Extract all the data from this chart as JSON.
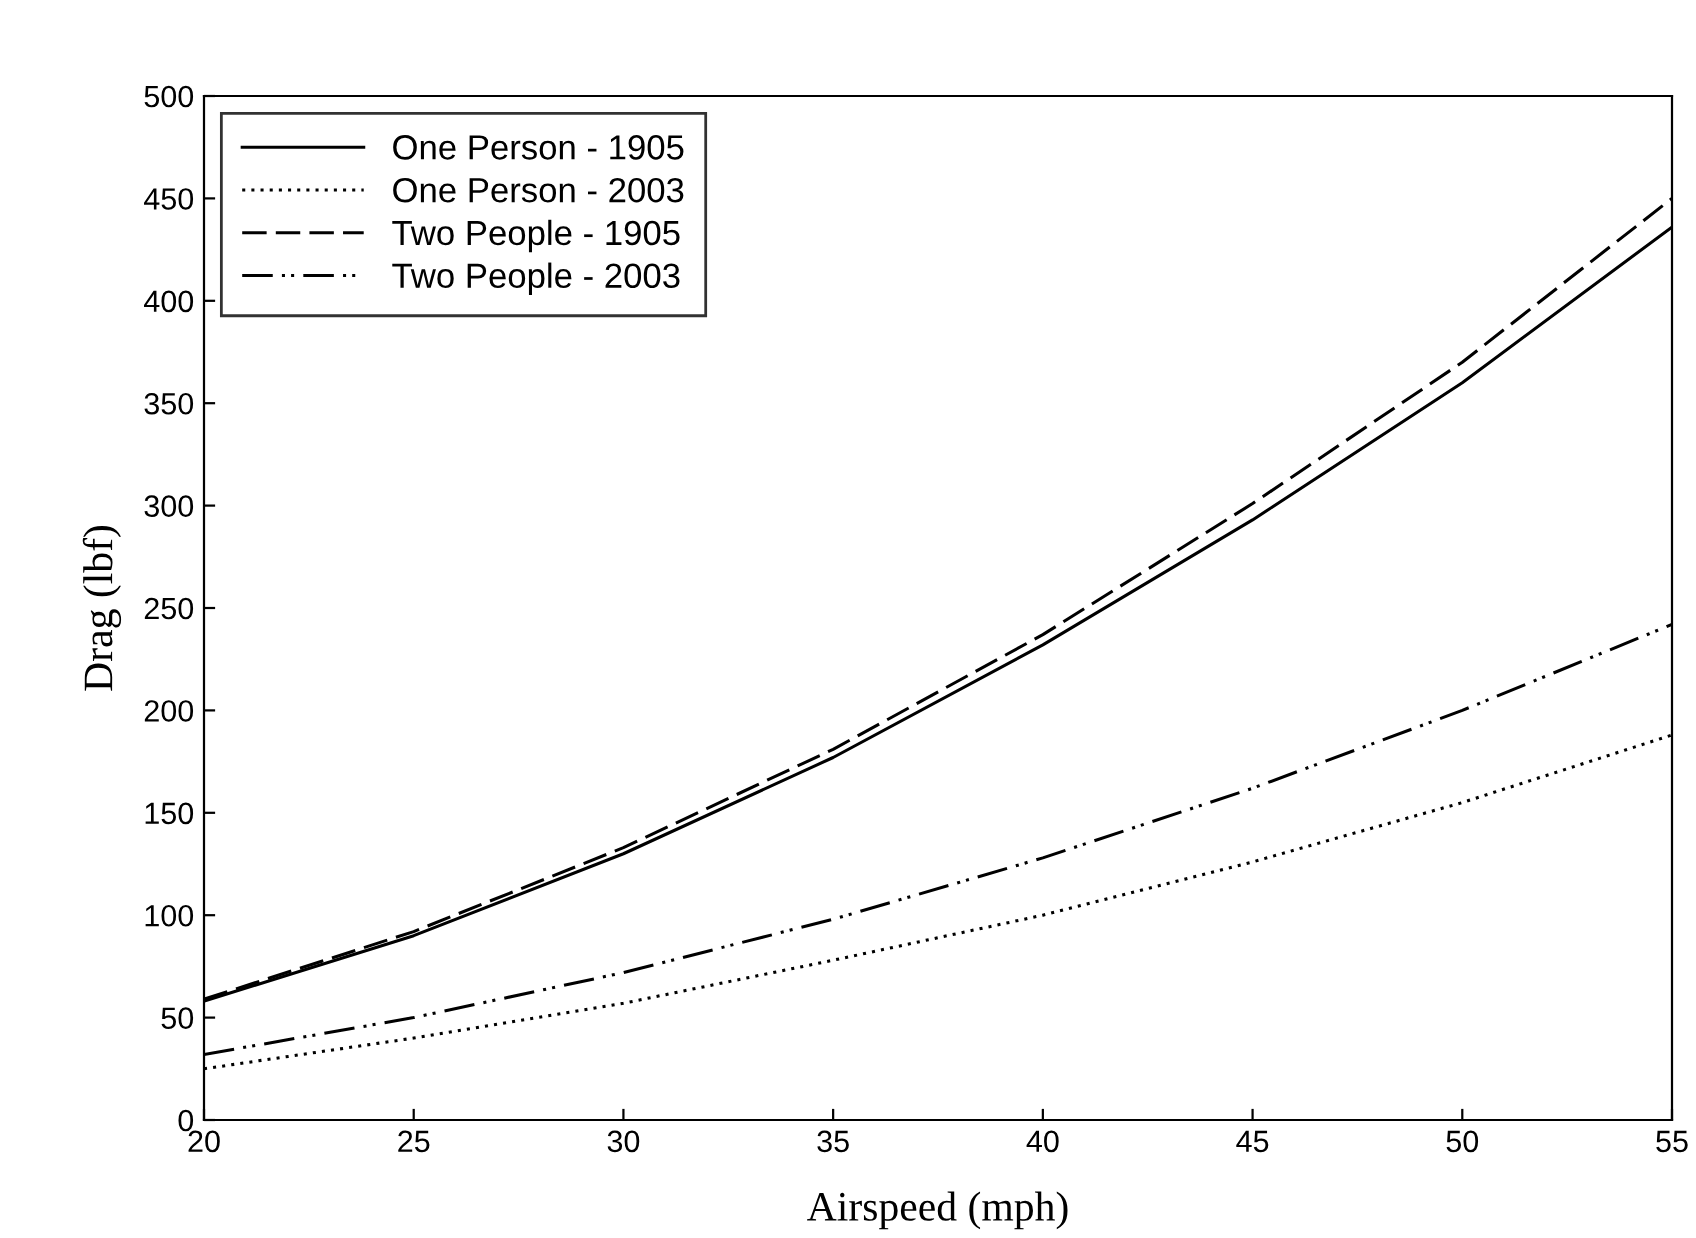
{
  "chart_data": {
    "type": "line",
    "xlabel": "Airspeed (mph)",
    "ylabel": "Drag (lbf)",
    "x": [
      20,
      25,
      30,
      35,
      40,
      45,
      50,
      55
    ],
    "series": [
      {
        "name": "One Person - 1905",
        "color": "#000000",
        "line_style": "solid",
        "values": [
          58,
          90,
          130,
          177,
          232,
          293,
          360,
          436
        ]
      },
      {
        "name": "One Person - 2003",
        "color": "#000000",
        "line_style": "dotted",
        "values": [
          25,
          40,
          57,
          78,
          100,
          126,
          155,
          188
        ]
      },
      {
        "name": "Two People - 1905",
        "color": "#000000",
        "line_style": "dashed",
        "values": [
          59,
          92,
          133,
          181,
          237,
          301,
          370,
          450
        ]
      },
      {
        "name": "Two People - 2003",
        "color": "#000000",
        "line_style": "dashdotdot",
        "values": [
          32,
          50,
          72,
          98,
          128,
          162,
          200,
          242
        ]
      }
    ],
    "xlim": [
      20,
      55
    ],
    "xticks": [
      20,
      25,
      30,
      35,
      40,
      45,
      50,
      55
    ],
    "ylim": [
      0,
      500
    ],
    "yticks": [
      0,
      50,
      100,
      150,
      200,
      250,
      300,
      350,
      400,
      450,
      500
    ],
    "grid": false,
    "legend": "top left",
    "marker": "none"
  }
}
